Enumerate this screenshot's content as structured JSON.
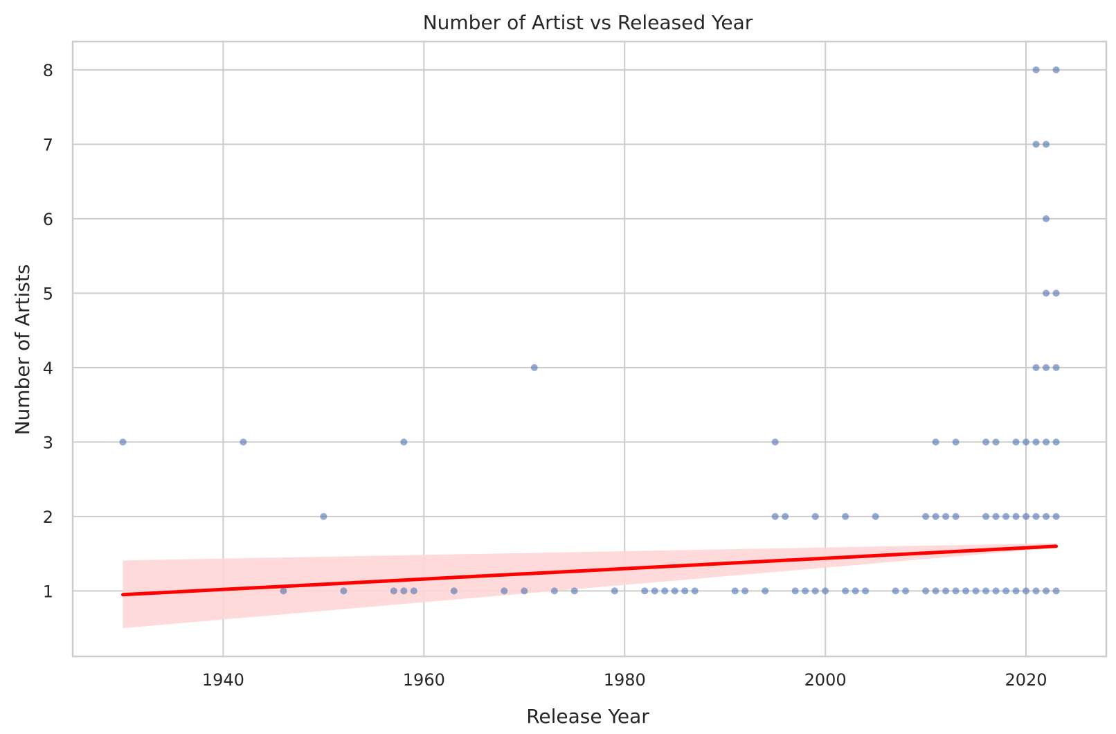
{
  "chart_data": {
    "type": "scatter",
    "title": "Number of Artist vs Released Year",
    "xlabel": "Release Year",
    "ylabel": "Number of Artists",
    "xlim": [
      1925,
      2028
    ],
    "ylim": [
      0.12,
      8.38
    ],
    "xticks": [
      1940,
      1960,
      1980,
      2000,
      2020
    ],
    "yticks": [
      1,
      2,
      3,
      4,
      5,
      6,
      7,
      8
    ],
    "grid": true,
    "colors": {
      "points": "#4c72b0",
      "regression_line": "#ff0000",
      "confidence_band": "#ffd6d6",
      "grid": "#cccccc",
      "background": "#ffffff"
    },
    "points": [
      [
        1930,
        3
      ],
      [
        1942,
        3
      ],
      [
        1950,
        2
      ],
      [
        1958,
        3
      ],
      [
        1971,
        4
      ],
      [
        1946,
        1
      ],
      [
        1952,
        1
      ],
      [
        1957,
        1
      ],
      [
        1958,
        1
      ],
      [
        1959,
        1
      ],
      [
        1963,
        1
      ],
      [
        1968,
        1
      ],
      [
        1970,
        1
      ],
      [
        1973,
        1
      ],
      [
        1975,
        1
      ],
      [
        1979,
        1
      ],
      [
        1982,
        1
      ],
      [
        1983,
        1
      ],
      [
        1984,
        1
      ],
      [
        1985,
        1
      ],
      [
        1986,
        1
      ],
      [
        1987,
        1
      ],
      [
        1991,
        1
      ],
      [
        1992,
        1
      ],
      [
        1994,
        1
      ],
      [
        1997,
        1
      ],
      [
        1998,
        1
      ],
      [
        1999,
        1
      ],
      [
        2000,
        1
      ],
      [
        2002,
        1
      ],
      [
        2003,
        1
      ],
      [
        2004,
        1
      ],
      [
        2007,
        1
      ],
      [
        2008,
        1
      ],
      [
        2010,
        1
      ],
      [
        2011,
        1
      ],
      [
        2012,
        1
      ],
      [
        2013,
        1
      ],
      [
        2014,
        1
      ],
      [
        2015,
        1
      ],
      [
        2016,
        1
      ],
      [
        2017,
        1
      ],
      [
        2018,
        1
      ],
      [
        2019,
        1
      ],
      [
        2020,
        1
      ],
      [
        2021,
        1
      ],
      [
        2022,
        1
      ],
      [
        2023,
        1
      ],
      [
        1995,
        2
      ],
      [
        1996,
        2
      ],
      [
        1999,
        2
      ],
      [
        2002,
        2
      ],
      [
        2005,
        2
      ],
      [
        2010,
        2
      ],
      [
        2011,
        2
      ],
      [
        2012,
        2
      ],
      [
        2013,
        2
      ],
      [
        2016,
        2
      ],
      [
        2017,
        2
      ],
      [
        2018,
        2
      ],
      [
        2019,
        2
      ],
      [
        2020,
        2
      ],
      [
        2021,
        2
      ],
      [
        2022,
        2
      ],
      [
        2023,
        2
      ],
      [
        1995,
        3
      ],
      [
        2011,
        3
      ],
      [
        2013,
        3
      ],
      [
        2016,
        3
      ],
      [
        2017,
        3
      ],
      [
        2019,
        3
      ],
      [
        2020,
        3
      ],
      [
        2021,
        3
      ],
      [
        2022,
        3
      ],
      [
        2023,
        3
      ],
      [
        2021,
        4
      ],
      [
        2022,
        4
      ],
      [
        2023,
        4
      ],
      [
        2022,
        5
      ],
      [
        2023,
        5
      ],
      [
        2022,
        6
      ],
      [
        2021,
        7
      ],
      [
        2022,
        7
      ],
      [
        2021,
        8
      ],
      [
        2023,
        8
      ]
    ],
    "regression": {
      "x": [
        1930,
        2023
      ],
      "y": [
        0.95,
        1.6
      ],
      "ci_lower": [
        0.5,
        1.58
      ],
      "ci_upper": [
        1.41,
        1.64
      ]
    }
  }
}
